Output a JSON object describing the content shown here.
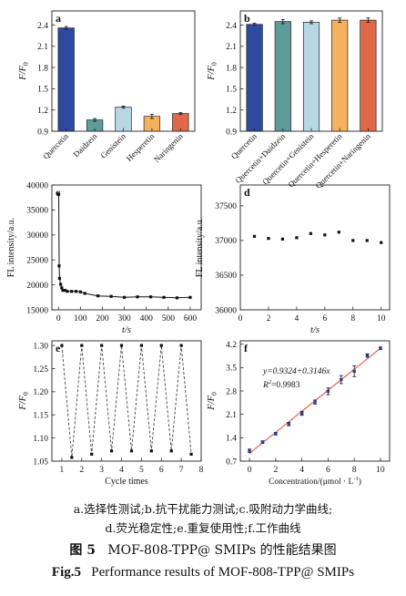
{
  "chart_data": [
    {
      "type": "bar",
      "panel_letter": "a",
      "categories": [
        "Quercetin",
        "Daidzein",
        "Genistein",
        "Hesperetin",
        "Naringenin"
      ],
      "values": [
        2.36,
        1.06,
        1.24,
        1.11,
        1.15
      ],
      "errors": [
        0.02,
        0.02,
        0.015,
        0.03,
        0.012
      ],
      "colors": [
        "#2e4a9e",
        "#5e9b9b",
        "#b8d7e4",
        "#f4b25e",
        "#e06848"
      ],
      "ylabel": "F/F",
      "ylabel_sub": "0",
      "ylim": [
        0.9,
        2.6
      ],
      "yticks": [
        "0.9",
        "1.2",
        "1.5",
        "1.8",
        "2.1",
        "2.4"
      ]
    },
    {
      "type": "bar",
      "panel_letter": "b",
      "categories": [
        "Quercetin",
        "Quercetin+Daidzein",
        "Quercetin+Genistein",
        "Quercetin+Hesperetin",
        "Quercetin+Naringenin"
      ],
      "values": [
        2.41,
        2.45,
        2.44,
        2.47,
        2.47
      ],
      "errors": [
        0.015,
        0.03,
        0.02,
        0.03,
        0.03
      ],
      "colors": [
        "#2e4a9e",
        "#5e9b9b",
        "#b8d7e4",
        "#f4b25e",
        "#e06848"
      ],
      "ylabel": "F/F",
      "ylabel_sub": "0",
      "ylim": [
        0.9,
        2.6
      ],
      "yticks": [
        "0.9",
        "1.2",
        "1.5",
        "1.8",
        "2.1",
        "2.4"
      ]
    },
    {
      "type": "line",
      "panel_letter": "c",
      "x": [
        1,
        3,
        5,
        10,
        15,
        20,
        30,
        40,
        60,
        80,
        100,
        120,
        180,
        240,
        300,
        360,
        420,
        480,
        540,
        600
      ],
      "y": [
        38200,
        23800,
        21300,
        20100,
        19400,
        18900,
        18900,
        18700,
        18700,
        18700,
        18600,
        18300,
        17800,
        17700,
        17500,
        17600,
        17600,
        17500,
        17400,
        17500
      ],
      "xlabel": "t/s",
      "ylabel": "FL intensity/a.u.",
      "xlim": [
        -30,
        650
      ],
      "ylim": [
        15000,
        40000
      ],
      "xticks": [
        "0",
        "100",
        "200",
        "300",
        "400",
        "500",
        "600"
      ],
      "yticks": [
        "15000",
        "20000",
        "25000",
        "30000",
        "35000",
        "40000"
      ]
    },
    {
      "type": "scatter",
      "panel_letter": "d",
      "x": [
        1,
        2,
        3,
        4,
        5,
        6,
        7,
        8,
        9,
        10
      ],
      "y": [
        37060,
        37030,
        37020,
        37040,
        37100,
        37080,
        37120,
        37000,
        37000,
        36970
      ],
      "xlabel": "t/s",
      "ylabel": "FL intensity/a.u.",
      "xlim": [
        0,
        10.6
      ],
      "ylim": [
        36000,
        37800
      ],
      "xticks": [
        "0",
        "2",
        "4",
        "6",
        "8",
        "10"
      ],
      "yticks": [
        "36000",
        "36500",
        "37000",
        "37500"
      ]
    },
    {
      "type": "line",
      "panel_letter": "e",
      "x": [
        1,
        1.5,
        2,
        2.5,
        3,
        3.5,
        4,
        4.5,
        5,
        5.5,
        6,
        6.5,
        7,
        7.5
      ],
      "y": [
        1.3,
        1.058,
        1.3,
        1.065,
        1.3,
        1.072,
        1.3,
        1.072,
        1.3,
        1.072,
        1.3,
        1.072,
        1.3,
        1.065
      ],
      "xlabel": "Cycle times",
      "ylabel": "F/F",
      "ylabel_sub": "0",
      "xlim": [
        0.5,
        8
      ],
      "ylim": [
        1.05,
        1.31
      ],
      "xticks": [
        "1",
        "2",
        "3",
        "4",
        "5",
        "6",
        "7",
        "8"
      ],
      "yticks": [
        "1.05",
        "1.10",
        "1.15",
        "1.20",
        "1.25",
        "1.30"
      ]
    },
    {
      "type": "scatter",
      "panel_letter": "f",
      "x": [
        0,
        1,
        2,
        3,
        4,
        5,
        6,
        7,
        8,
        9,
        10
      ],
      "y": [
        1.01,
        1.27,
        1.52,
        1.81,
        2.13,
        2.47,
        2.79,
        3.14,
        3.39,
        3.86,
        4.08
      ],
      "errors": [
        0.05,
        0.04,
        0.04,
        0.05,
        0.06,
        0.06,
        0.1,
        0.12,
        0.16,
        0.05,
        0.04
      ],
      "fit_line": [
        0.9324,
        0.3146
      ],
      "equation": "y=0.9324+0.3146x",
      "r2_label": "R",
      "r2_value": "=0.9983",
      "xlabel": "Concentration/(μmol · L",
      "xlabel_sup": "-1",
      "xlabel_tail": ")",
      "ylabel": "F/F",
      "ylabel_sub": "0",
      "xlim": [
        -0.7,
        10.7
      ],
      "ylim": [
        0.7,
        4.3
      ],
      "xticks": [
        "0",
        "2",
        "4",
        "6",
        "8",
        "10"
      ],
      "yticks": [
        "0.7",
        "1.4",
        "2.1",
        "2.8",
        "3.5",
        "4.2"
      ]
    }
  ],
  "caption": {
    "sub_line1": "a.选择性测试;b.抗干扰能力测试;c.吸附动力学曲线;",
    "sub_line2": "d.荧光稳定性;e.重复使用性;f.工作曲线",
    "cn_label": "图 5",
    "cn_text": "MOF-808-TPP@ SMIPs 的性能结果图",
    "en_label": "Fig.5",
    "en_text": "Performance results of MOF-808-TPP@ SMIPs"
  }
}
